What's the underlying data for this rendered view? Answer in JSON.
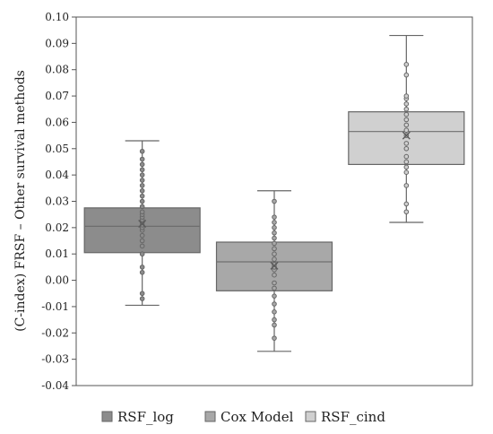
{
  "chart_data": {
    "type": "box",
    "title": "",
    "xlabel": "",
    "ylabel": "(C-index) FRSF – Other survival methods",
    "ylim": [
      -0.04,
      0.1
    ],
    "yticks": [
      -0.04,
      -0.03,
      -0.02,
      -0.01,
      0.0,
      0.01,
      0.02,
      0.03,
      0.04,
      0.05,
      0.06,
      0.07,
      0.08,
      0.09,
      0.1
    ],
    "ytick_labels": [
      "-0.04",
      "-0.03",
      "-0.02",
      "-0.01",
      "0.00",
      "0.01",
      "0.02",
      "0.03",
      "0.04",
      "0.05",
      "0.06",
      "0.07",
      "0.08",
      "0.09",
      "0.10"
    ],
    "grid": false,
    "legend_position": "bottom",
    "series": [
      {
        "name": "RSF_log",
        "color": "#8c8c8c",
        "whisker_low": -0.0095,
        "q1": 0.0105,
        "median": 0.0205,
        "q3": 0.0275,
        "whisker_high": 0.053,
        "mean": 0.0215,
        "points": [
          -0.007,
          -0.005,
          0.003,
          0.005,
          0.01,
          0.013,
          0.015,
          0.017,
          0.019,
          0.02,
          0.021,
          0.022,
          0.023,
          0.024,
          0.025,
          0.026,
          0.028,
          0.03,
          0.032,
          0.034,
          0.036,
          0.038,
          0.04,
          0.042,
          0.044,
          0.046,
          0.049
        ]
      },
      {
        "name": "Cox Model",
        "color": "#a8a8a8",
        "whisker_low": -0.027,
        "q1": -0.004,
        "median": 0.007,
        "q3": 0.0145,
        "whisker_high": 0.034,
        "mean": 0.0055,
        "points": [
          -0.022,
          -0.017,
          -0.015,
          -0.012,
          -0.009,
          -0.006,
          -0.003,
          -0.001,
          0.002,
          0.004,
          0.005,
          0.006,
          0.008,
          0.01,
          0.012,
          0.014,
          0.016,
          0.018,
          0.02,
          0.022,
          0.024,
          0.03
        ]
      },
      {
        "name": "RSF_cind",
        "color": "#d0d0d0",
        "whisker_low": 0.022,
        "q1": 0.044,
        "median": 0.0565,
        "q3": 0.064,
        "whisker_high": 0.093,
        "mean": 0.055,
        "points": [
          0.026,
          0.029,
          0.036,
          0.041,
          0.043,
          0.045,
          0.047,
          0.05,
          0.052,
          0.055,
          0.057,
          0.059,
          0.061,
          0.063,
          0.065,
          0.067,
          0.069,
          0.07,
          0.078,
          0.082
        ]
      }
    ]
  }
}
